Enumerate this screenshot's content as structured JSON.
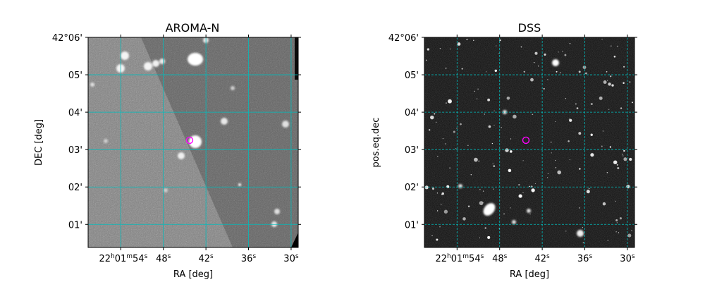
{
  "chart_data": [
    {
      "type": "image",
      "title": "AROMA-N",
      "xlabel": "RA [deg]",
      "ylabel": "DEC [deg]",
      "x_ticks": [
        {
          "text": "22h01m54s",
          "ra": "22:01:54"
        },
        {
          "text": "48s",
          "ra": "22:01:48"
        },
        {
          "text": "42s",
          "ra": "22:01:42"
        },
        {
          "text": "36s",
          "ra": "22:01:36"
        },
        {
          "text": "30s",
          "ra": "22:01:30"
        }
      ],
      "y_ticks": [
        "42°06'",
        "05'",
        "04'",
        "03'",
        "02'",
        "01'"
      ],
      "grid": true,
      "grid_color": "#00bcbc",
      "background": "grayscale-noise",
      "marker": {
        "shape": "circle",
        "color": "#ff00ff",
        "ra": "22:01:44.3",
        "dec": "42:03:15"
      }
    },
    {
      "type": "image",
      "title": "DSS",
      "xlabel": "RA [deg]",
      "ylabel": "pos.eq.dec",
      "x_ticks": [
        {
          "text": "22h01m54s",
          "ra": "22:01:54"
        },
        {
          "text": "48s",
          "ra": "22:01:48"
        },
        {
          "text": "42s",
          "ra": "22:01:42"
        },
        {
          "text": "36s",
          "ra": "22:01:36"
        },
        {
          "text": "30s",
          "ra": "22:01:30"
        }
      ],
      "y_ticks": [
        "42°06'",
        "05'",
        "04'",
        "03'",
        "02'",
        "01'"
      ],
      "grid": true,
      "grid_color": "#00bcbc",
      "background": "dark-starfield",
      "marker": {
        "shape": "circle",
        "color": "#ff00ff",
        "ra": "22:01:44.3",
        "dec": "42:03:15"
      }
    }
  ]
}
